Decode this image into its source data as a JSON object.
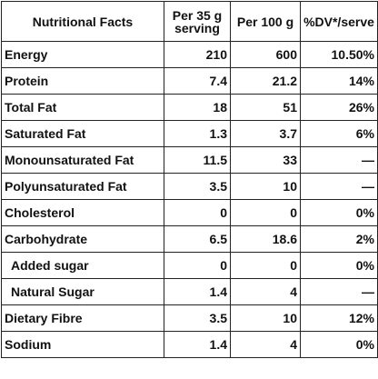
{
  "table": {
    "header": [
      "Nutritional Facts",
      "Per 35 g serving",
      "Per 100 g",
      "%DV*/serve"
    ],
    "rows": [
      [
        "Energy",
        210,
        600,
        "10.50%"
      ],
      [
        "Protein",
        7.4,
        21.2,
        "14%"
      ],
      [
        "Total Fat",
        18,
        51,
        "26%"
      ],
      [
        "Saturated Fat",
        1.3,
        3.7,
        "6%"
      ],
      [
        "Monounsaturated Fat",
        11.5,
        33,
        "—"
      ],
      [
        "Polyunsaturated Fat",
        3.5,
        10,
        "—"
      ],
      [
        "Cholesterol",
        0,
        0,
        "0%"
      ],
      [
        "Carbohydrate",
        6.5,
        18.6,
        "2%"
      ],
      [
        "Added sugar",
        0,
        0,
        "0%"
      ],
      [
        "Natural Sugar",
        1.4,
        4,
        "—"
      ],
      [
        "Dietary Fibre",
        3.5,
        10,
        "12%"
      ],
      [
        "Sodium",
        1.4,
        4,
        "0%"
      ]
    ]
  }
}
